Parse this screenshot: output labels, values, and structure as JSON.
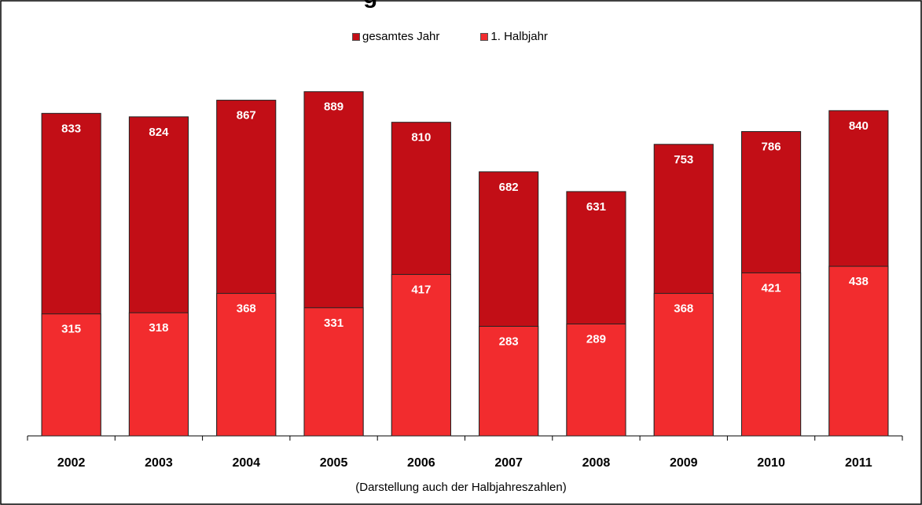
{
  "chart_data": {
    "type": "bar",
    "stacked": "overlay",
    "title_fragment": "g",
    "categories": [
      "2002",
      "2003",
      "2004",
      "2005",
      "2006",
      "2007",
      "2008",
      "2009",
      "2010",
      "2011"
    ],
    "series": [
      {
        "name": "gesamtes Jahr",
        "values": [
          833,
          824,
          867,
          889,
          810,
          682,
          631,
          753,
          786,
          840
        ],
        "color": "#c20e16"
      },
      {
        "name": "1. Halbjahr",
        "values": [
          315,
          318,
          368,
          331,
          417,
          283,
          289,
          368,
          421,
          438
        ],
        "color": "#f22c2e"
      }
    ],
    "caption": "(Darstellung auch der Halbjahreszahlen)",
    "ylim": [
      0,
      1000
    ],
    "grid": false,
    "legend_position": "top-center",
    "colors": {
      "bar_edge": "#222222",
      "label": "#ffffff",
      "axis": "#000000"
    }
  }
}
